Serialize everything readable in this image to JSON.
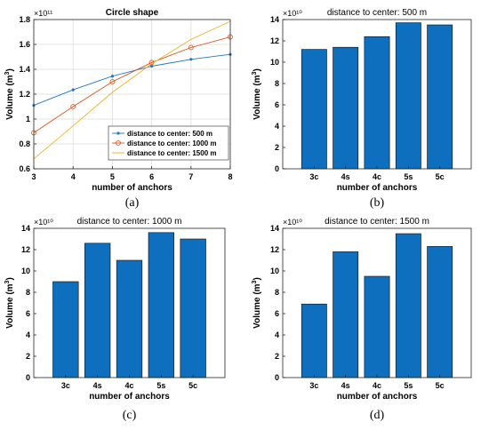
{
  "chart_data": [
    {
      "type": "line",
      "title": "Circle shape",
      "xlabel": "number of anchors",
      "ylabel": "Volume (m^3)",
      "y_exponent": "×10¹¹",
      "x": [
        3,
        4,
        5,
        6,
        7,
        8
      ],
      "xlim": [
        3,
        8
      ],
      "ylim": [
        0.6,
        1.8
      ],
      "xticks": [
        "3",
        "4",
        "5",
        "6",
        "7",
        "8"
      ],
      "yticks": [
        "0.6",
        "0.8",
        "1",
        "1.2",
        "1.4",
        "1.6",
        "1.8"
      ],
      "grid": true,
      "legend_position": "bottom-right",
      "series": [
        {
          "name": "distance to center: 500 m",
          "values": [
            1.11,
            1.235,
            1.345,
            1.425,
            1.48,
            1.52
          ],
          "color": "#1f77c9",
          "marker": "dot"
        },
        {
          "name": "distance to center: 1000 m",
          "values": [
            0.89,
            1.1,
            1.3,
            1.455,
            1.575,
            1.66
          ],
          "color": "#d95319",
          "marker": "circle"
        },
        {
          "name": "distance to center: 1500 m",
          "values": [
            0.68,
            0.945,
            1.215,
            1.445,
            1.64,
            1.785
          ],
          "color": "#edb120",
          "marker": "none"
        }
      ],
      "caption": "(a)"
    },
    {
      "type": "bar",
      "title": "distance to center: 500 m",
      "xlabel": "number of anchors",
      "ylabel": "Volume (m^3)",
      "y_exponent": "×10¹⁰",
      "categories": [
        "3c",
        "4s",
        "4c",
        "5s",
        "5c"
      ],
      "values": [
        11.2,
        11.4,
        12.4,
        13.7,
        13.5
      ],
      "ylim": [
        0,
        14
      ],
      "yticks": [
        "0",
        "2",
        "4",
        "6",
        "8",
        "10",
        "12",
        "14"
      ],
      "grid": false,
      "bar_color": "#0e6fbf",
      "caption": "(b)"
    },
    {
      "type": "bar",
      "title": "distance to center: 1000 m",
      "xlabel": "number of anchors",
      "ylabel": "Volume (m^3)",
      "y_exponent": "×10¹⁰",
      "categories": [
        "3c",
        "4s",
        "4c",
        "5s",
        "5c"
      ],
      "values": [
        9.0,
        12.6,
        11.0,
        13.6,
        13.0
      ],
      "ylim": [
        0,
        14
      ],
      "yticks": [
        "0",
        "2",
        "4",
        "6",
        "8",
        "10",
        "12",
        "14"
      ],
      "grid": false,
      "bar_color": "#0e6fbf",
      "caption": "(c)"
    },
    {
      "type": "bar",
      "title": "distance to center: 1500 m",
      "xlabel": "number of anchors",
      "ylabel": "Volume (m^3)",
      "y_exponent": "×10¹⁰",
      "categories": [
        "3c",
        "4s",
        "4c",
        "5s",
        "5c"
      ],
      "values": [
        6.9,
        11.8,
        9.5,
        13.5,
        12.3
      ],
      "ylim": [
        0,
        14
      ],
      "yticks": [
        "0",
        "2",
        "4",
        "6",
        "8",
        "10",
        "12",
        "14"
      ],
      "grid": false,
      "bar_color": "#0e6fbf",
      "caption": "(d)"
    }
  ]
}
